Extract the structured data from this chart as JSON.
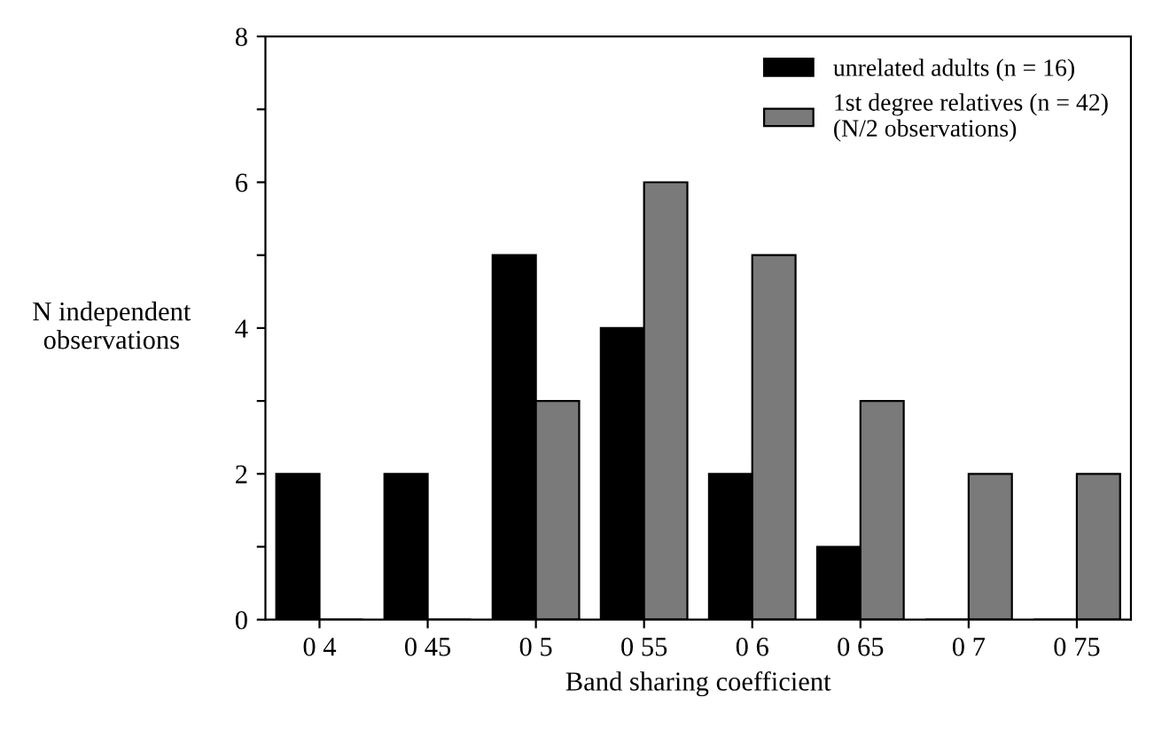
{
  "chart_data": {
    "type": "bar",
    "xlabel": "Band sharing coefficient",
    "ylabel": "N independent\nobservations",
    "categories": [
      "0 4",
      "0 45",
      "0 5",
      "0 55",
      "0 6",
      "0 65",
      "0 7",
      "0 75"
    ],
    "series": [
      {
        "name": "unrelated adults (n = 16)",
        "color": "#000000",
        "values": [
          2,
          2,
          5,
          4,
          2,
          1,
          0,
          0
        ]
      },
      {
        "name": "1st degree relatives (n = 42)\n(N/2 observations)",
        "color": "#7a7a7a",
        "values": [
          0,
          0,
          3,
          6,
          5,
          3,
          2,
          2
        ]
      }
    ],
    "ylim": [
      0,
      8
    ],
    "yticks": [
      0,
      {
        "value": 1,
        "label": null
      },
      2,
      {
        "value": 3,
        "label": null
      },
      4,
      {
        "value": 5,
        "label": null
      },
      6,
      {
        "value": 7,
        "label": null
      },
      8
    ],
    "grid": false,
    "legend": "top right"
  }
}
